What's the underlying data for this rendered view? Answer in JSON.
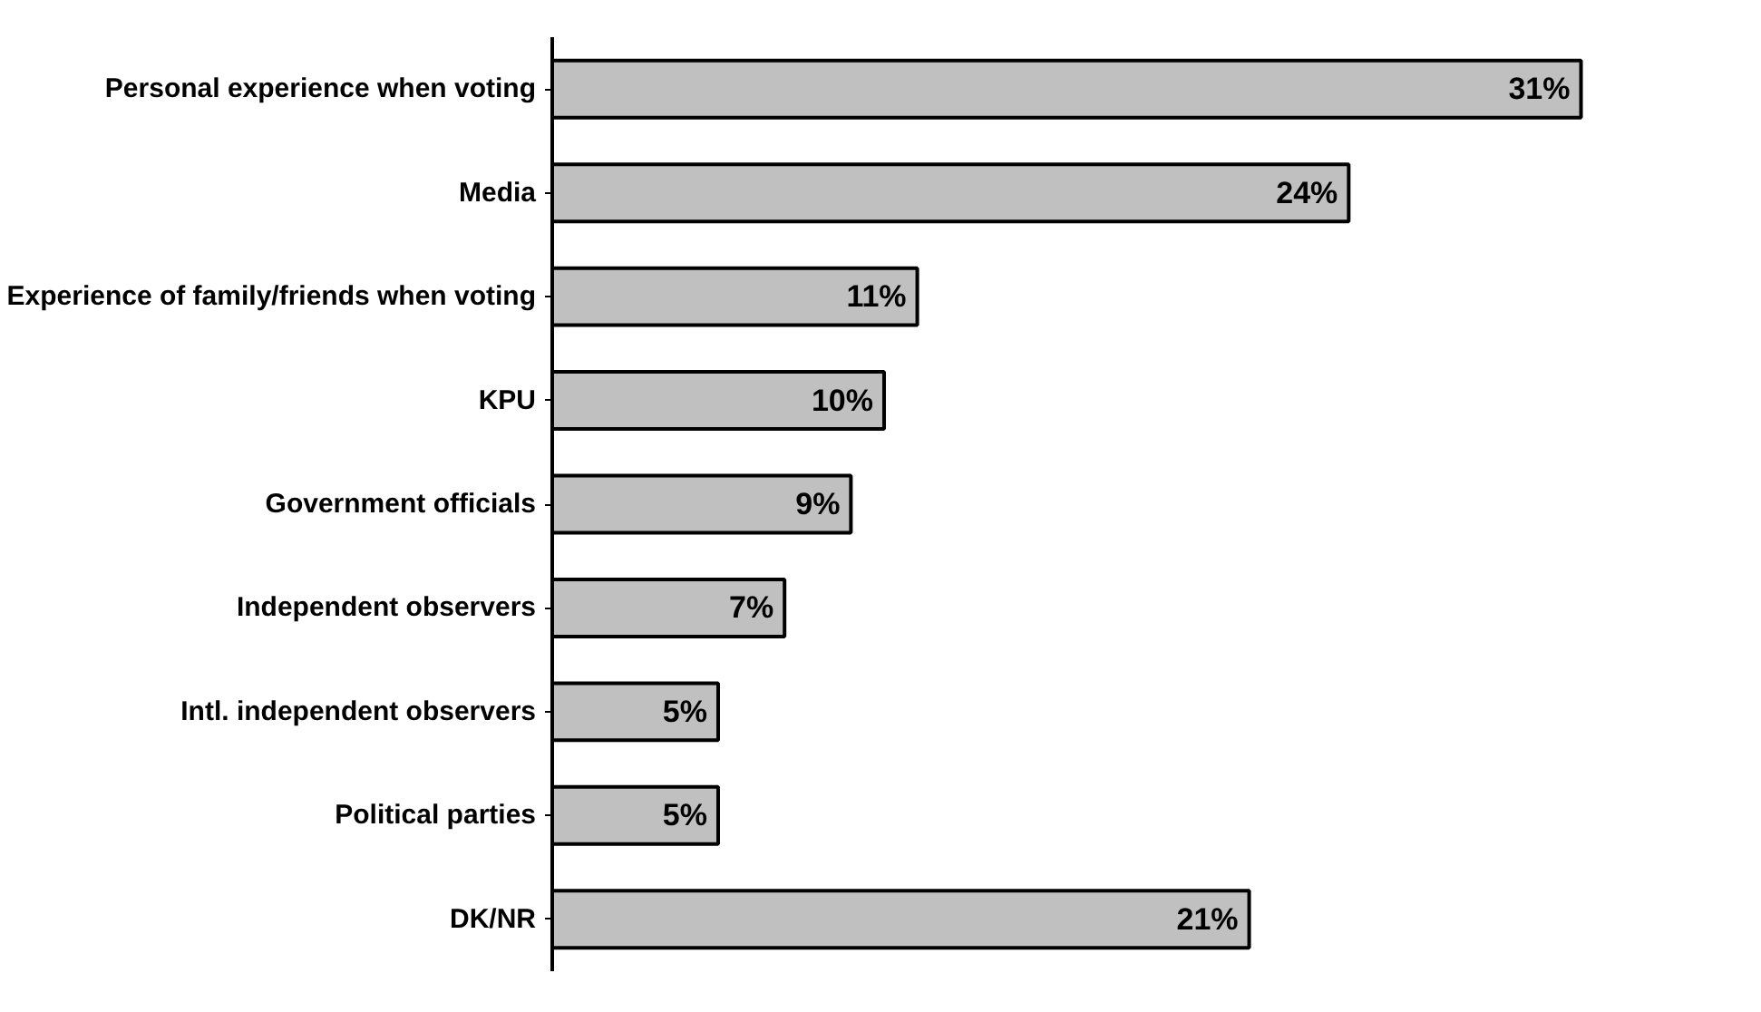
{
  "chart_data": {
    "type": "bar",
    "orientation": "horizontal",
    "categories": [
      "Personal experience when voting",
      "Media",
      "Experience of family/friends when voting",
      "KPU",
      "Government officials",
      "Independent observers",
      "Intl. independent observers",
      "Political parties",
      "DK/NR"
    ],
    "values": [
      31,
      24,
      11,
      10,
      9,
      7,
      5,
      5,
      21
    ],
    "value_labels": [
      "31%",
      "24%",
      "11%",
      "10%",
      "9%",
      "7%",
      "5%",
      "5%",
      "21%"
    ],
    "color": "#c0c0c0",
    "tick_labels": "y",
    "grid": false
  }
}
